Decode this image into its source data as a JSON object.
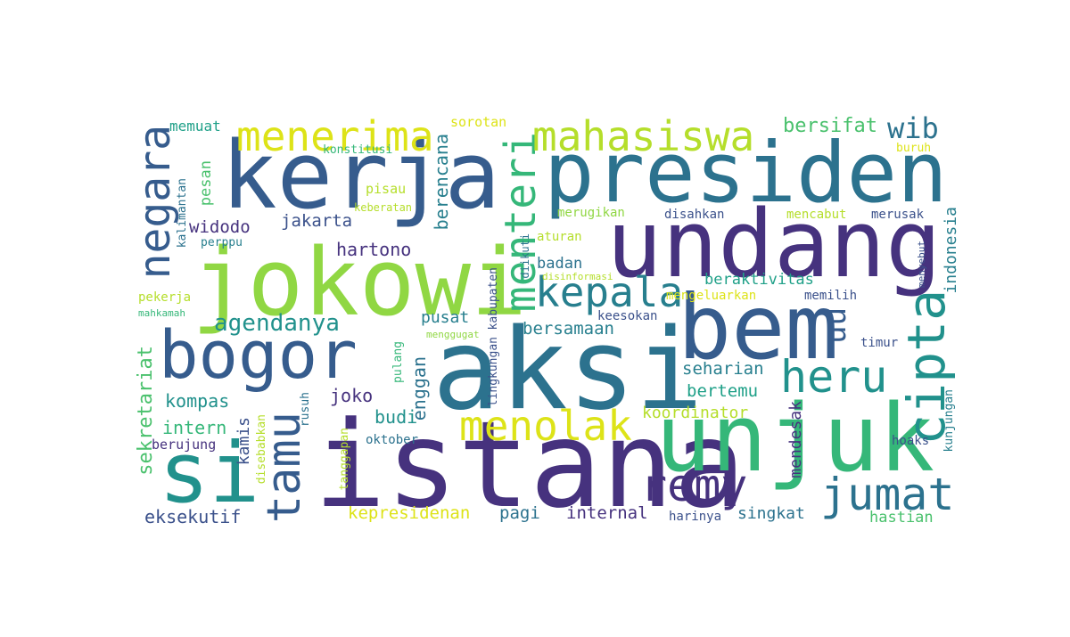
{
  "words": {
    "kerja": "kerja",
    "presiden": "presiden",
    "undang": "undang",
    "jokowi": "jokowi",
    "aksi": "aksi",
    "istana": "istana",
    "unjuk": "unjuk",
    "bem": "bem",
    "bogor": "bogor",
    "si": "si",
    "negara": "negara",
    "menteri": "menteri",
    "mahasiswa": "mahasiswa",
    "menerima": "menerima",
    "kepala": "kepala",
    "cipta": "cipta",
    "heru": "heru",
    "jumat": "jumat",
    "remy": "remy",
    "menolak": "menolak",
    "tamu": "tamu",
    "uu": "uu",
    "wib": "wib",
    "agendanya": "agendanya",
    "bersifat": "bersifat",
    "memuat": "memuat",
    "sorotan": "sorotan",
    "konstitusi": "konstitusi",
    "buruh": "buruh",
    "pesan": "pesan",
    "pisau": "pisau",
    "keberatan": "keberatan",
    "berencana": "berencana",
    "kalimantan": "kalimantan",
    "widodo": "widodo",
    "jakarta": "jakarta",
    "merugikan": "merugikan",
    "disahkan": "disahkan",
    "mencabut": "mencabut",
    "merusak": "merusak",
    "indonesia": "indonesia",
    "perppu": "perppu",
    "hartono": "hartono",
    "aturan": "aturan",
    "diikuti": "diikuti",
    "disinformasi": "disinformasi",
    "badan": "badan",
    "berakiktivitas": "beraktivitas",
    "menyebut": "menyebut",
    "pekerja": "pekerja",
    "mahkamah": "mahkamah",
    "mengeluarkan": "mengeluarkan",
    "memilih": "memilih",
    "pusat": "pusat",
    "keesokan": "keesokan",
    "menggugat": "menggugat",
    "bersamaan": "bersamaan",
    "lingkungan": "lingkungan",
    "kabupaten": "kabupaten",
    "timur": "timur",
    "sekretariat": "sekretariat",
    "pulang": "pulang",
    "seharian": "seharian",
    "kompas": "kompas",
    "joko": "joko",
    "rusuh": "rusuh",
    "bertemu": "bertemu",
    "kunjungan": "kunjungan",
    "intern": "intern",
    "kamis": "kamis",
    "budi": "budi",
    "enggan": "enggan",
    "koordinator": "koordinator",
    "mendesak": "mendesak",
    "tanggapan": "tanggapan",
    "oktober": "oktober",
    "berujung": "berujung",
    "hoaks": "hoaks",
    "disebabkan": "disebabkan",
    "kepresidenan": "kepresidenan",
    "pagi": "pagi",
    "internal": "internal",
    "harinya": "harinya",
    "singkat": "singkat",
    "hastian": "hastian",
    "eksekutif": "eksekutif"
  },
  "colors": {
    "dark_purple": "#46327e",
    "indigo": "#3b518b",
    "blue": "#365c8d",
    "teal_blue": "#2c728e",
    "teal": "#277f8e",
    "green_teal": "#21918c",
    "sea_green": "#1fa088",
    "green": "#35b779",
    "light_green": "#4ac16d",
    "lime": "#90d743",
    "yellow_green": "#b5de2b",
    "yellow": "#dde318"
  }
}
